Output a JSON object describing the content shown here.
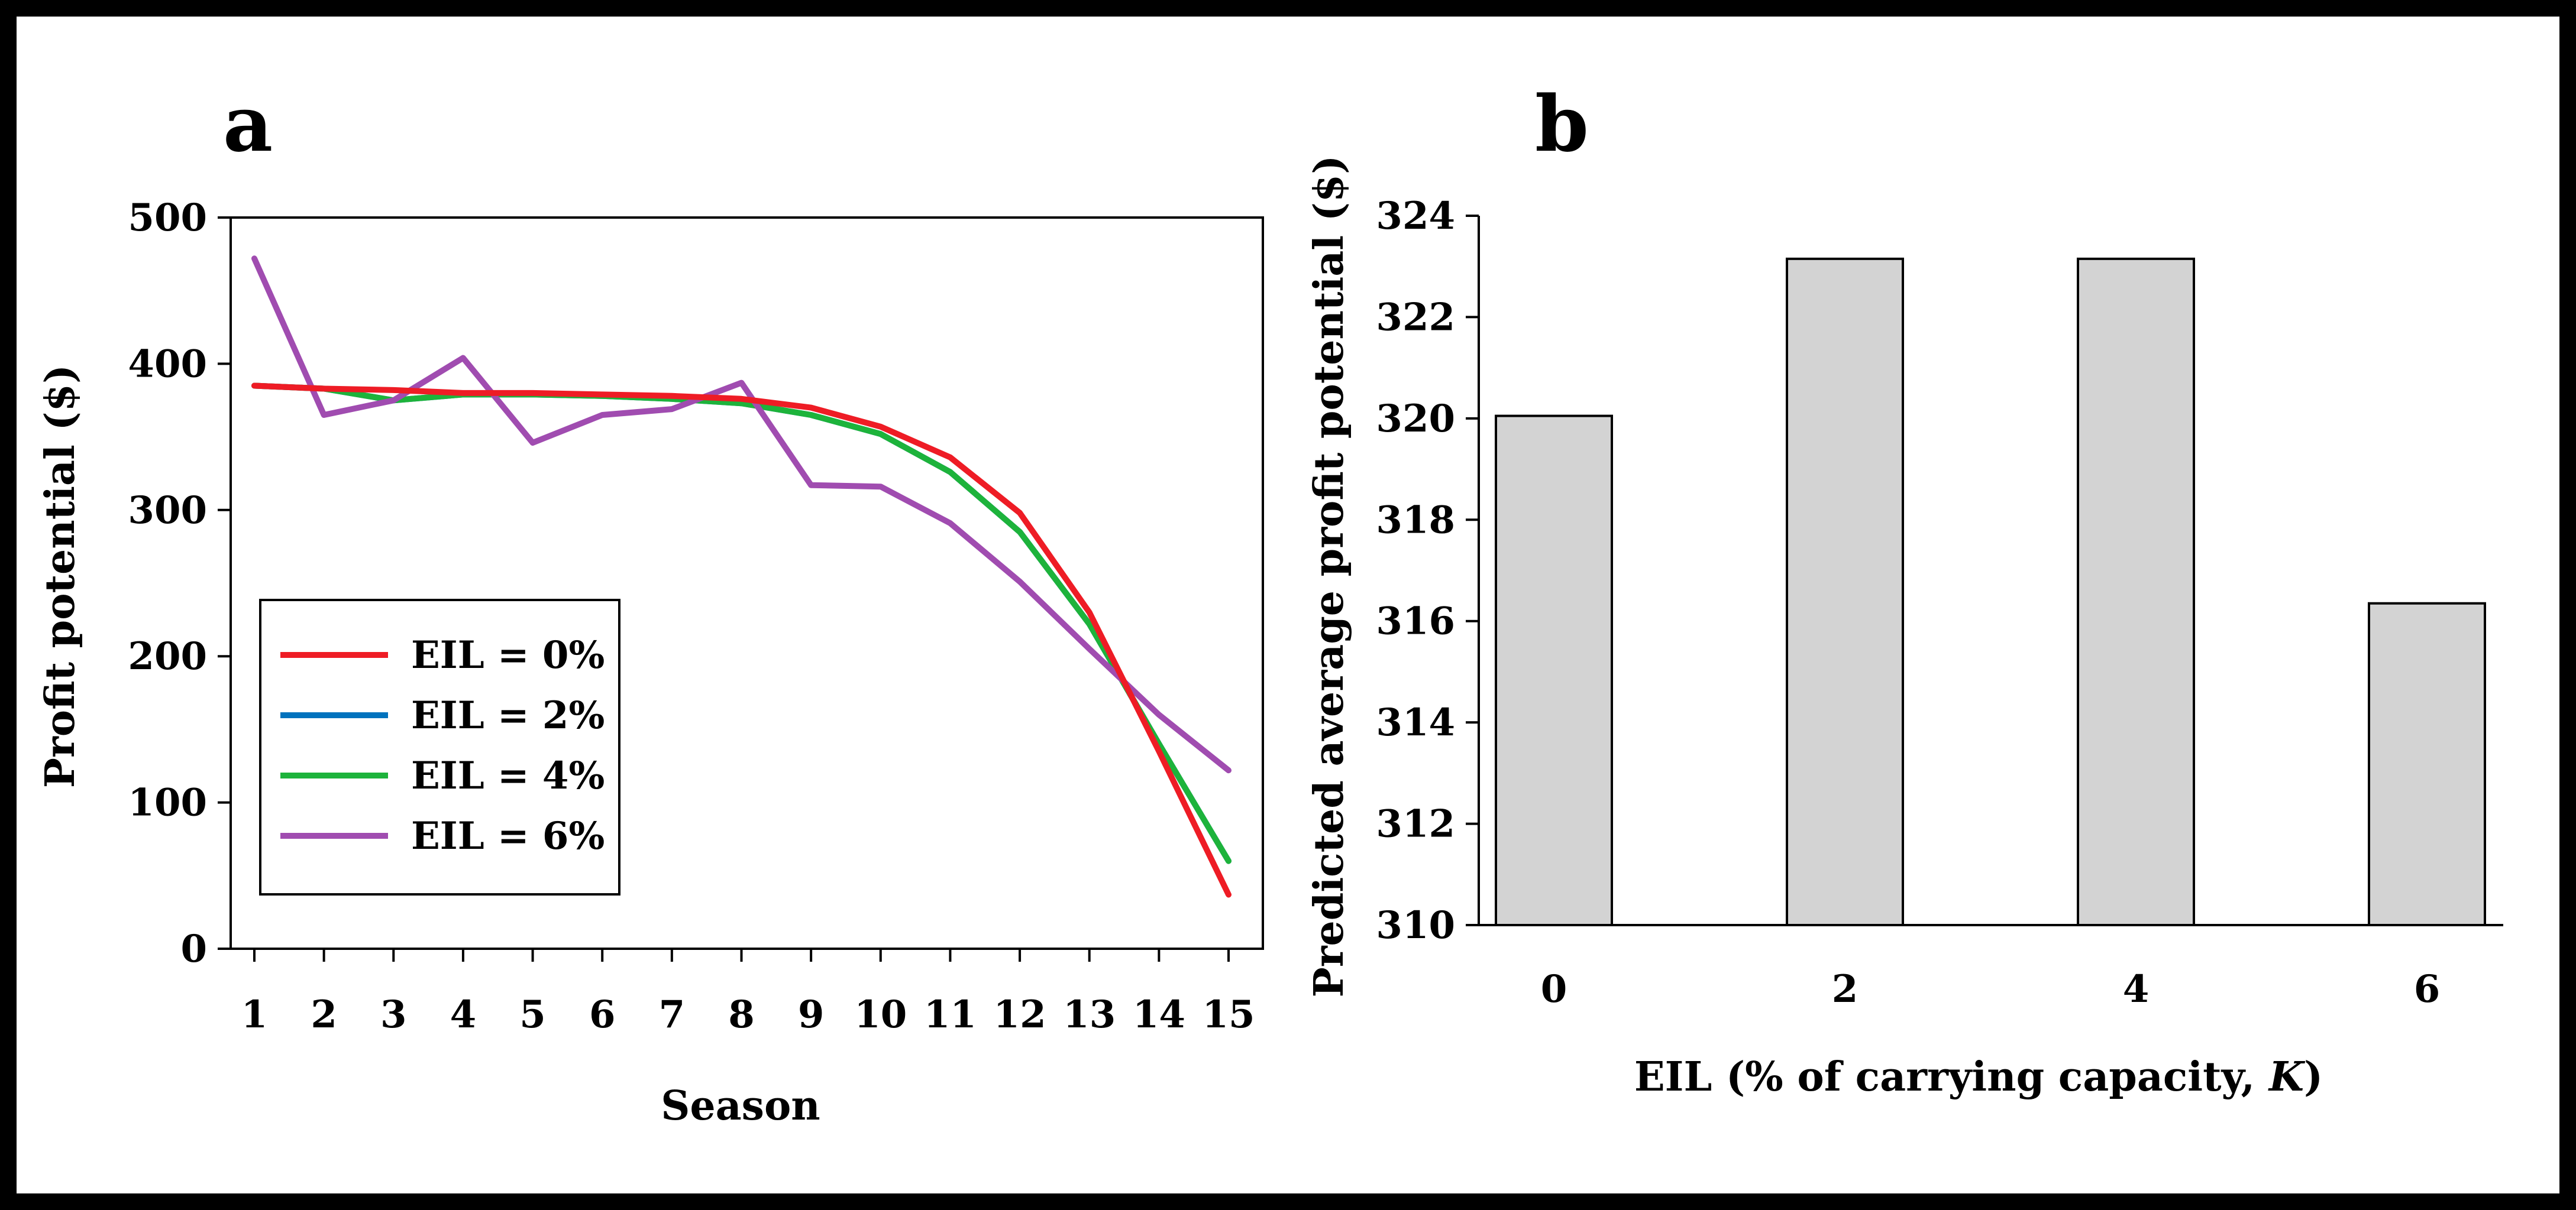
{
  "chart_data": [
    {
      "panel": "a",
      "type": "line",
      "title": "",
      "xlabel": "Season",
      "ylabel": "Profit potential ($)",
      "ylim": [
        0,
        500
      ],
      "yticks": [
        "0",
        "100",
        "200",
        "300",
        "400",
        "500"
      ],
      "x": [
        1,
        2,
        3,
        4,
        5,
        6,
        7,
        8,
        9,
        10,
        11,
        12,
        13,
        14,
        15
      ],
      "xticks": [
        "1",
        "2",
        "3",
        "4",
        "5",
        "6",
        "7",
        "8",
        "9",
        "10",
        "11",
        "12",
        "13",
        "14",
        "15"
      ],
      "legend_position": "bottom-left",
      "series": [
        {
          "name": "EIL = 0%",
          "color": "#ee1c25",
          "values": [
            385,
            383,
            382,
            380,
            380,
            379,
            378,
            376,
            370,
            357,
            336,
            298,
            230,
            135,
            37
          ]
        },
        {
          "name": "EIL = 2%",
          "color": "#0072bd",
          "values": [
            385,
            383,
            375,
            379,
            379,
            378,
            376,
            373,
            365,
            352,
            326,
            285,
            222,
            140,
            60
          ]
        },
        {
          "name": "EIL = 4%",
          "color": "#1db33b",
          "values": [
            385,
            383,
            375,
            379,
            379,
            378,
            376,
            373,
            365,
            352,
            326,
            285,
            222,
            140,
            60
          ]
        },
        {
          "name": "EIL = 6%",
          "color": "#a04cb0",
          "values": [
            472,
            365,
            375,
            404,
            346,
            365,
            369,
            387,
            317,
            316,
            291,
            251,
            205,
            160,
            122
          ]
        }
      ]
    },
    {
      "panel": "b",
      "type": "bar",
      "title": "",
      "xlabel_prefix": "EIL (% of carrying capacity, ",
      "xlabel_italic": "K",
      "xlabel_suffix": ")",
      "ylabel": "Predicted average profit potential ($)",
      "ylim": [
        310,
        324
      ],
      "yticks": [
        "310",
        "312",
        "314",
        "316",
        "318",
        "320",
        "322",
        "324"
      ],
      "categories": [
        "0",
        "2",
        "4",
        "6"
      ],
      "values": [
        320.05,
        323.15,
        323.15,
        316.35
      ],
      "bar_color": "#d3d3d3"
    }
  ]
}
